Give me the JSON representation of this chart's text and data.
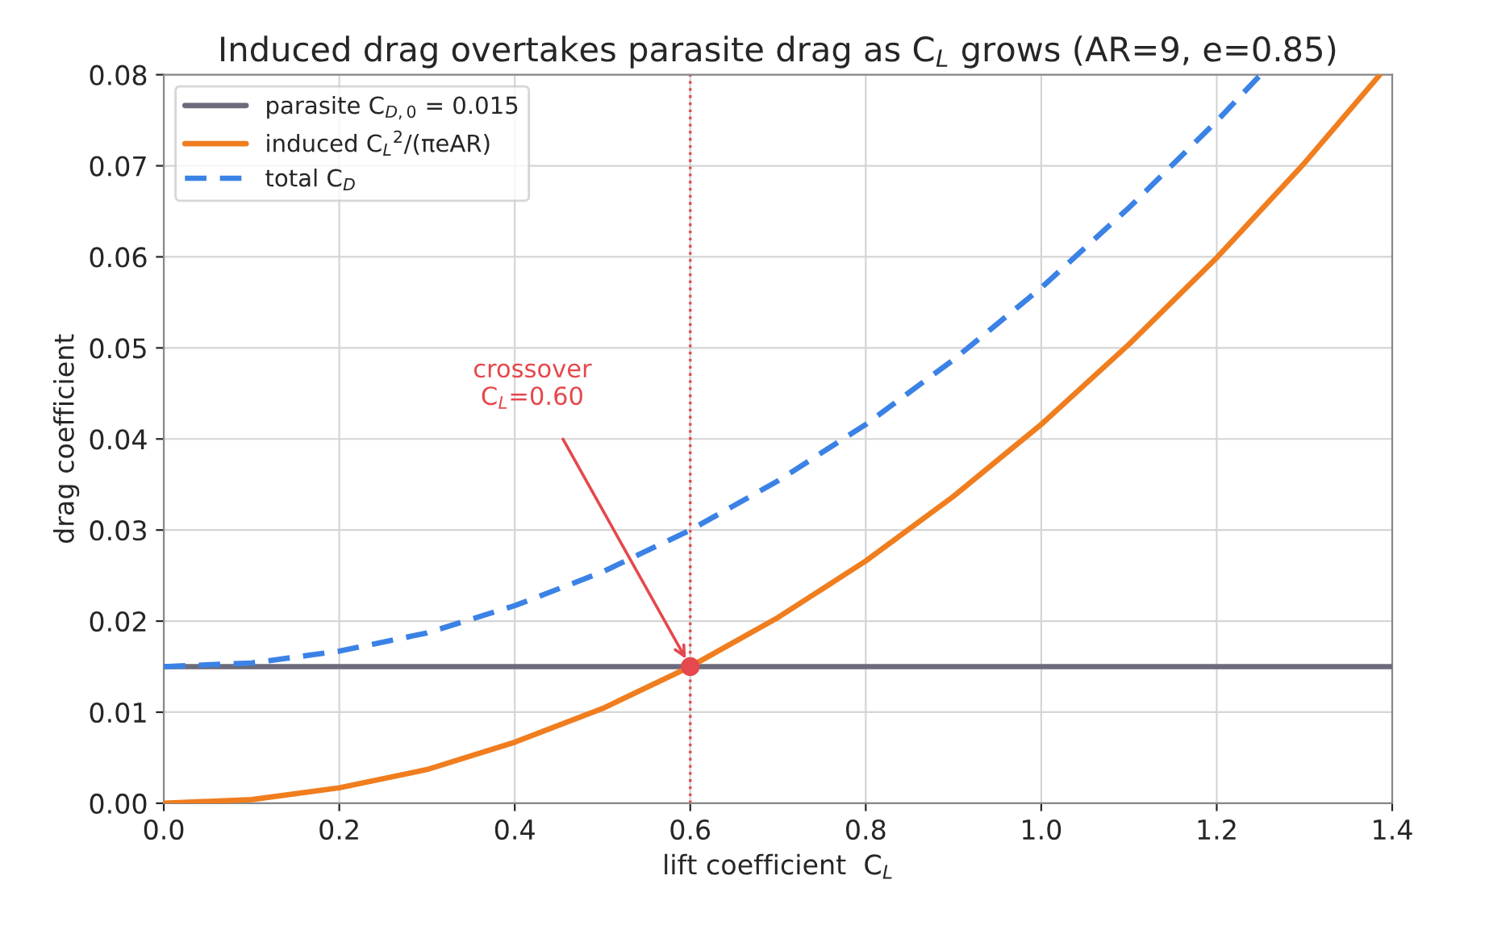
{
  "chart_data": {
    "type": "line",
    "title": "Induced drag overtakes parasite drag as C$_{L}$ grows (AR=9, e=0.85)",
    "xlabel": "lift coefficient  C$_{L}$",
    "ylabel": "drag coefficient",
    "series": [
      {
        "name": "parasite C$_{D,0}$ = 0.015",
        "color": "#6b6b7b",
        "line_style": "solid",
        "x": [
          0,
          1.4
        ],
        "values": [
          0.015,
          0.015
        ]
      },
      {
        "name": "induced C$_{L}$$^{2}$/(πeAR)",
        "color": "#f07d1e",
        "line_style": "solid",
        "x": [
          0,
          0.1,
          0.2,
          0.3,
          0.4,
          0.5,
          0.6,
          0.7,
          0.8,
          0.9,
          1.0,
          1.1,
          1.2,
          1.3,
          1.386
        ],
        "values": [
          0.0,
          0.0004,
          0.0017,
          0.0037,
          0.0067,
          0.0104,
          0.015,
          0.0204,
          0.0266,
          0.0337,
          0.0416,
          0.0504,
          0.0599,
          0.0703,
          0.08
        ]
      },
      {
        "name": "total C$_{D}$",
        "color": "#3b82e6",
        "line_style": "dashed",
        "x": [
          0,
          0.1,
          0.2,
          0.3,
          0.4,
          0.5,
          0.6,
          0.7,
          0.8,
          0.9,
          1.0,
          1.1,
          1.2,
          1.25
        ],
        "values": [
          0.015,
          0.0154,
          0.0167,
          0.0187,
          0.0217,
          0.0254,
          0.03,
          0.0354,
          0.0416,
          0.0487,
          0.0566,
          0.0654,
          0.0749,
          0.08
        ]
      },
      {
        "type": "scatter",
        "color": "#e5484d",
        "marker": "circle",
        "x": [
          0.6
        ],
        "values": [
          0.015
        ]
      }
    ],
    "ref_lines": [
      {
        "axis": "x",
        "value": 0.6,
        "color": "#e5484d",
        "line_style": "dotted"
      }
    ],
    "annotations": [
      {
        "text": "crossover\nC$_{L}$=0.60",
        "x": 0.6,
        "y": 0.015
      }
    ],
    "xlim": [
      0,
      1.4
    ],
    "ylim": [
      0,
      0.08
    ],
    "xticks": [
      {
        "value": 0,
        "label": "0.0"
      },
      0.2,
      0.4,
      0.6,
      0.8,
      {
        "value": 1,
        "label": "1.0"
      },
      1.2,
      1.4
    ],
    "yticks": [
      {
        "value": 0,
        "label": "0.00"
      },
      {
        "value": 0.01,
        "label": "0.01"
      },
      {
        "value": 0.02,
        "label": "0.02"
      },
      {
        "value": 0.03,
        "label": "0.03"
      },
      {
        "value": 0.04,
        "label": "0.04"
      },
      {
        "value": 0.05,
        "label": "0.05"
      },
      {
        "value": 0.06,
        "label": "0.06"
      },
      {
        "value": 0.07,
        "label": "0.07"
      },
      {
        "value": 0.08,
        "label": "0.08"
      }
    ],
    "grid": true,
    "legend": "top left"
  }
}
